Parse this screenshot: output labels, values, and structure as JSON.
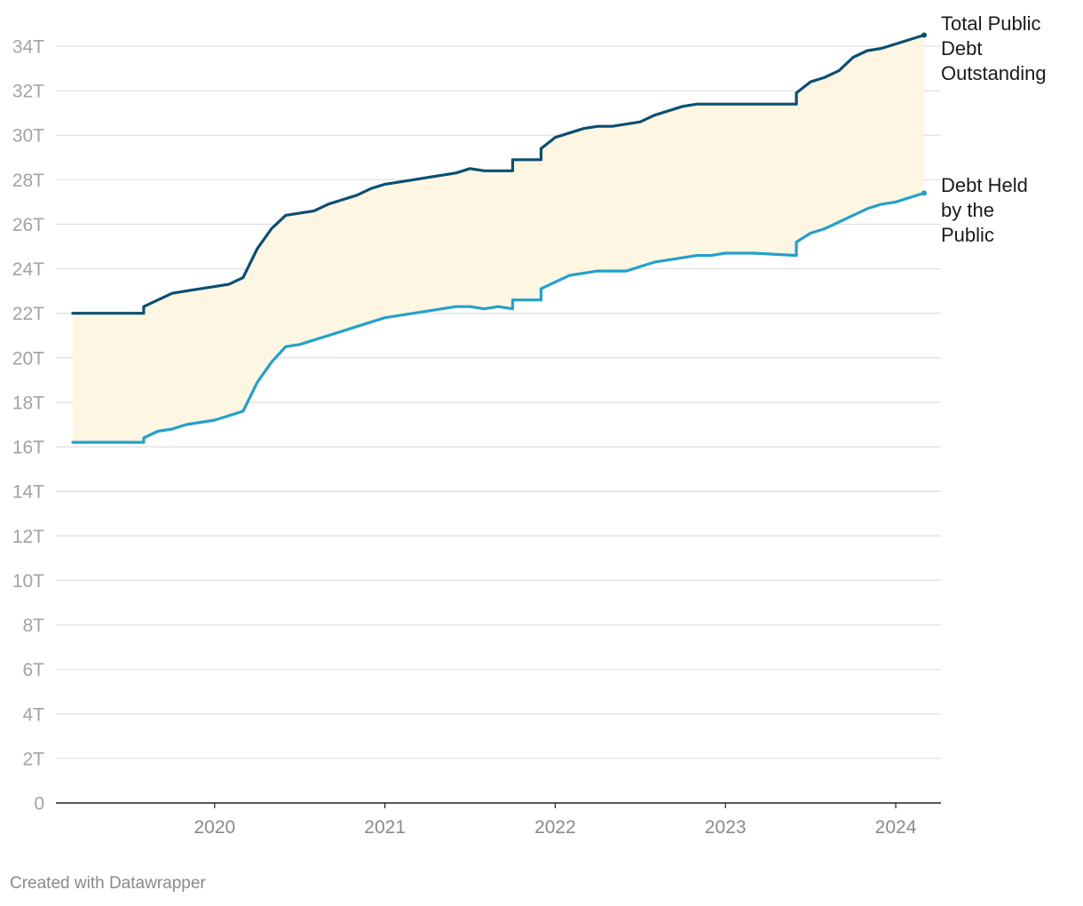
{
  "chart_data": {
    "type": "line",
    "y_ticks": [
      {
        "value": 0,
        "label": "0"
      },
      {
        "value": 2,
        "label": "2T"
      },
      {
        "value": 4,
        "label": "4T"
      },
      {
        "value": 6,
        "label": "6T"
      },
      {
        "value": 8,
        "label": "8T"
      },
      {
        "value": 10,
        "label": "10T"
      },
      {
        "value": 12,
        "label": "12T"
      },
      {
        "value": 14,
        "label": "14T"
      },
      {
        "value": 16,
        "label": "16T"
      },
      {
        "value": 18,
        "label": "18T"
      },
      {
        "value": 20,
        "label": "20T"
      },
      {
        "value": 22,
        "label": "22T"
      },
      {
        "value": 24,
        "label": "24T"
      },
      {
        "value": 26,
        "label": "26T"
      },
      {
        "value": 28,
        "label": "28T"
      },
      {
        "value": 30,
        "label": "30T"
      },
      {
        "value": 32,
        "label": "32T"
      },
      {
        "value": 34,
        "label": "34T"
      }
    ],
    "x_ticks": [
      {
        "value": "2020",
        "label": "2020"
      },
      {
        "value": "2021",
        "label": "2021"
      },
      {
        "value": "2022",
        "label": "2022"
      },
      {
        "value": "2023",
        "label": "2023"
      },
      {
        "value": "2024",
        "label": "2024"
      }
    ],
    "ylim": [
      0,
      34.5
    ],
    "xlim": [
      "2019-03",
      "2024-05"
    ],
    "grid": true,
    "area_between_series": true,
    "series": [
      {
        "name": "Total Public Debt Outstanding",
        "label_lines": [
          "Total Public",
          "Debt",
          "Outstanding"
        ],
        "color": "#0b4f71",
        "points": [
          [
            "2019-03",
            22.0
          ],
          [
            "2019-05",
            22.0
          ],
          [
            "2019-07",
            22.0
          ],
          [
            "2019-08",
            22.0
          ],
          [
            "2019-08",
            22.3
          ],
          [
            "2019-09",
            22.6
          ],
          [
            "2019-10",
            22.9
          ],
          [
            "2019-11",
            23.0
          ],
          [
            "2019-12",
            23.1
          ],
          [
            "2020-01",
            23.2
          ],
          [
            "2020-02",
            23.3
          ],
          [
            "2020-03",
            23.6
          ],
          [
            "2020-04",
            24.9
          ],
          [
            "2020-05",
            25.8
          ],
          [
            "2020-06",
            26.4
          ],
          [
            "2020-07",
            26.5
          ],
          [
            "2020-08",
            26.6
          ],
          [
            "2020-09",
            26.9
          ],
          [
            "2020-10",
            27.1
          ],
          [
            "2020-11",
            27.3
          ],
          [
            "2020-12",
            27.6
          ],
          [
            "2021-01",
            27.8
          ],
          [
            "2021-02",
            27.9
          ],
          [
            "2021-03",
            28.0
          ],
          [
            "2021-04",
            28.1
          ],
          [
            "2021-05",
            28.2
          ],
          [
            "2021-06",
            28.3
          ],
          [
            "2021-07",
            28.5
          ],
          [
            "2021-08",
            28.4
          ],
          [
            "2021-10",
            28.4
          ],
          [
            "2021-10",
            28.9
          ],
          [
            "2021-12",
            28.9
          ],
          [
            "2021-12",
            29.4
          ],
          [
            "2022-01",
            29.9
          ],
          [
            "2022-02",
            30.1
          ],
          [
            "2022-03",
            30.3
          ],
          [
            "2022-04",
            30.4
          ],
          [
            "2022-05",
            30.4
          ],
          [
            "2022-06",
            30.5
          ],
          [
            "2022-07",
            30.6
          ],
          [
            "2022-08",
            30.9
          ],
          [
            "2022-09",
            31.1
          ],
          [
            "2022-10",
            31.3
          ],
          [
            "2022-11",
            31.4
          ],
          [
            "2022-12",
            31.4
          ],
          [
            "2023-01",
            31.4
          ],
          [
            "2023-03",
            31.4
          ],
          [
            "2023-06",
            31.4
          ],
          [
            "2023-06",
            31.9
          ],
          [
            "2023-07",
            32.4
          ],
          [
            "2023-08",
            32.6
          ],
          [
            "2023-09",
            32.9
          ],
          [
            "2023-10",
            33.5
          ],
          [
            "2023-11",
            33.8
          ],
          [
            "2023-12",
            33.9
          ],
          [
            "2024-01",
            34.1
          ],
          [
            "2024-02",
            34.3
          ],
          [
            "2024-03",
            34.5
          ]
        ]
      },
      {
        "name": "Debt Held by the Public",
        "label_lines": [
          "Debt Held",
          "by the",
          "Public"
        ],
        "color": "#24a0cc",
        "points": [
          [
            "2019-03",
            16.2
          ],
          [
            "2019-05",
            16.2
          ],
          [
            "2019-07",
            16.2
          ],
          [
            "2019-08",
            16.2
          ],
          [
            "2019-08",
            16.4
          ],
          [
            "2019-09",
            16.7
          ],
          [
            "2019-10",
            16.8
          ],
          [
            "2019-11",
            17.0
          ],
          [
            "2019-12",
            17.1
          ],
          [
            "2020-01",
            17.2
          ],
          [
            "2020-02",
            17.4
          ],
          [
            "2020-03",
            17.6
          ],
          [
            "2020-04",
            18.9
          ],
          [
            "2020-05",
            19.8
          ],
          [
            "2020-06",
            20.5
          ],
          [
            "2020-07",
            20.6
          ],
          [
            "2020-08",
            20.8
          ],
          [
            "2020-09",
            21.0
          ],
          [
            "2020-10",
            21.2
          ],
          [
            "2020-11",
            21.4
          ],
          [
            "2020-12",
            21.6
          ],
          [
            "2021-01",
            21.8
          ],
          [
            "2021-02",
            21.9
          ],
          [
            "2021-03",
            22.0
          ],
          [
            "2021-04",
            22.1
          ],
          [
            "2021-05",
            22.2
          ],
          [
            "2021-06",
            22.3
          ],
          [
            "2021-07",
            22.3
          ],
          [
            "2021-08",
            22.2
          ],
          [
            "2021-09",
            22.3
          ],
          [
            "2021-10",
            22.2
          ],
          [
            "2021-10",
            22.6
          ],
          [
            "2021-12",
            22.6
          ],
          [
            "2021-12",
            23.1
          ],
          [
            "2022-01",
            23.4
          ],
          [
            "2022-02",
            23.7
          ],
          [
            "2022-03",
            23.8
          ],
          [
            "2022-04",
            23.9
          ],
          [
            "2022-05",
            23.9
          ],
          [
            "2022-06",
            23.9
          ],
          [
            "2022-07",
            24.1
          ],
          [
            "2022-08",
            24.3
          ],
          [
            "2022-09",
            24.4
          ],
          [
            "2022-10",
            24.5
          ],
          [
            "2022-11",
            24.6
          ],
          [
            "2022-12",
            24.6
          ],
          [
            "2023-01",
            24.7
          ],
          [
            "2023-03",
            24.7
          ],
          [
            "2023-06",
            24.6
          ],
          [
            "2023-06",
            25.2
          ],
          [
            "2023-07",
            25.6
          ],
          [
            "2023-08",
            25.8
          ],
          [
            "2023-09",
            26.1
          ],
          [
            "2023-10",
            26.4
          ],
          [
            "2023-11",
            26.7
          ],
          [
            "2023-12",
            26.9
          ],
          [
            "2024-01",
            27.0
          ],
          [
            "2024-02",
            27.2
          ],
          [
            "2024-03",
            27.4
          ]
        ]
      }
    ]
  },
  "footer": {
    "credit": "Created with Datawrapper"
  },
  "colors": {
    "area_fill": "#fdf6e3",
    "grid": "#e1e1e1",
    "baseline": "#222222"
  }
}
